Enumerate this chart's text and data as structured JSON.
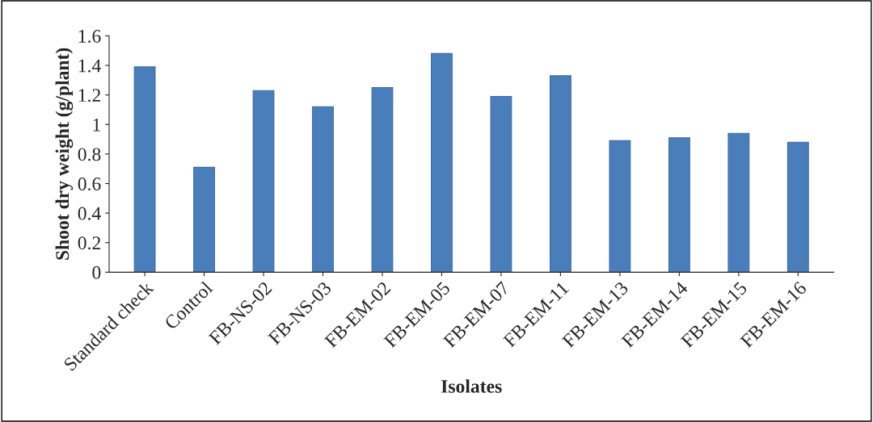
{
  "chart_data": {
    "type": "bar",
    "xlabel": "Isolates",
    "ylabel": "Shoot dry weight (g/plant)",
    "categories": [
      "Standard check",
      "Control",
      "FB-NS-02",
      "FB-NS-03",
      "FB-EM-02",
      "FB-EM-05",
      "FB-EM-07",
      "FB-EM-11",
      "FB-EM-13",
      "FB-EM-14",
      "FB-EM-15",
      "FB-EM-16"
    ],
    "values": [
      1.39,
      0.71,
      1.23,
      1.12,
      1.25,
      1.48,
      1.19,
      1.33,
      0.89,
      0.91,
      0.94,
      0.88
    ],
    "color": "#4a7ebb",
    "ylim": [
      0,
      1.6
    ],
    "yticks": [
      0,
      0.2,
      0.4,
      0.6,
      0.8,
      1,
      1.2,
      1.4,
      1.6
    ],
    "grid": false,
    "legend": false
  }
}
